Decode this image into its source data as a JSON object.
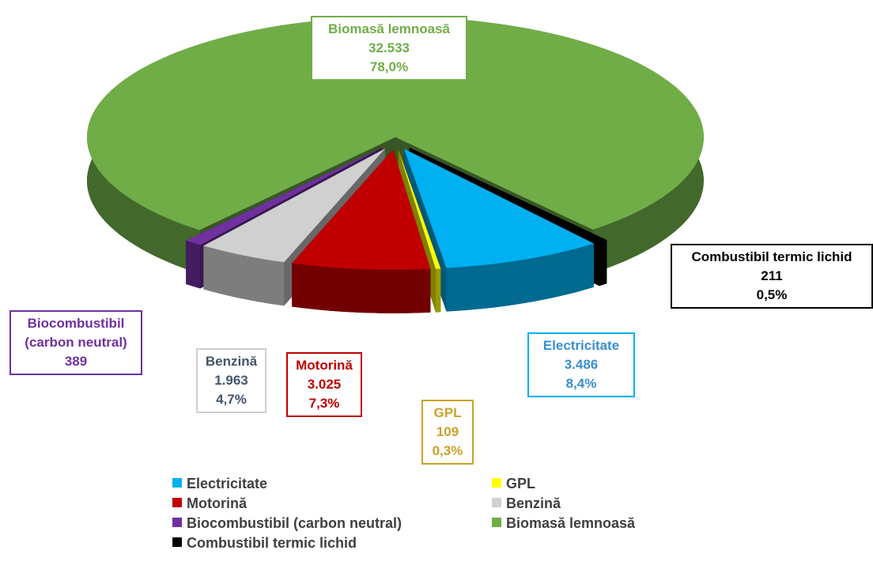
{
  "chart_data": {
    "type": "pie",
    "categories": [
      "Electricitate",
      "GPL",
      "Motorină",
      "Benzină",
      "Biocombustibil (carbon neutral)",
      "Biomasă lemnoasă",
      "Combustibil termic lichid"
    ],
    "values": [
      3486,
      109,
      3025,
      1963,
      389,
      32533,
      211
    ],
    "value_labels": [
      "3.486",
      "109",
      "3.025",
      "1.963",
      "389",
      "32.533",
      "211"
    ],
    "percent_labels": [
      "8,4%",
      "0,3%",
      "7,3%",
      "4,7%",
      null,
      "78,0%",
      "0,5%"
    ],
    "colors": [
      "#00b0f0",
      "#ffff00",
      "#c00000",
      "#d0d0d0",
      "#7030a0",
      "#70ad47",
      "#000000"
    ],
    "legend": "bottom"
  }
}
